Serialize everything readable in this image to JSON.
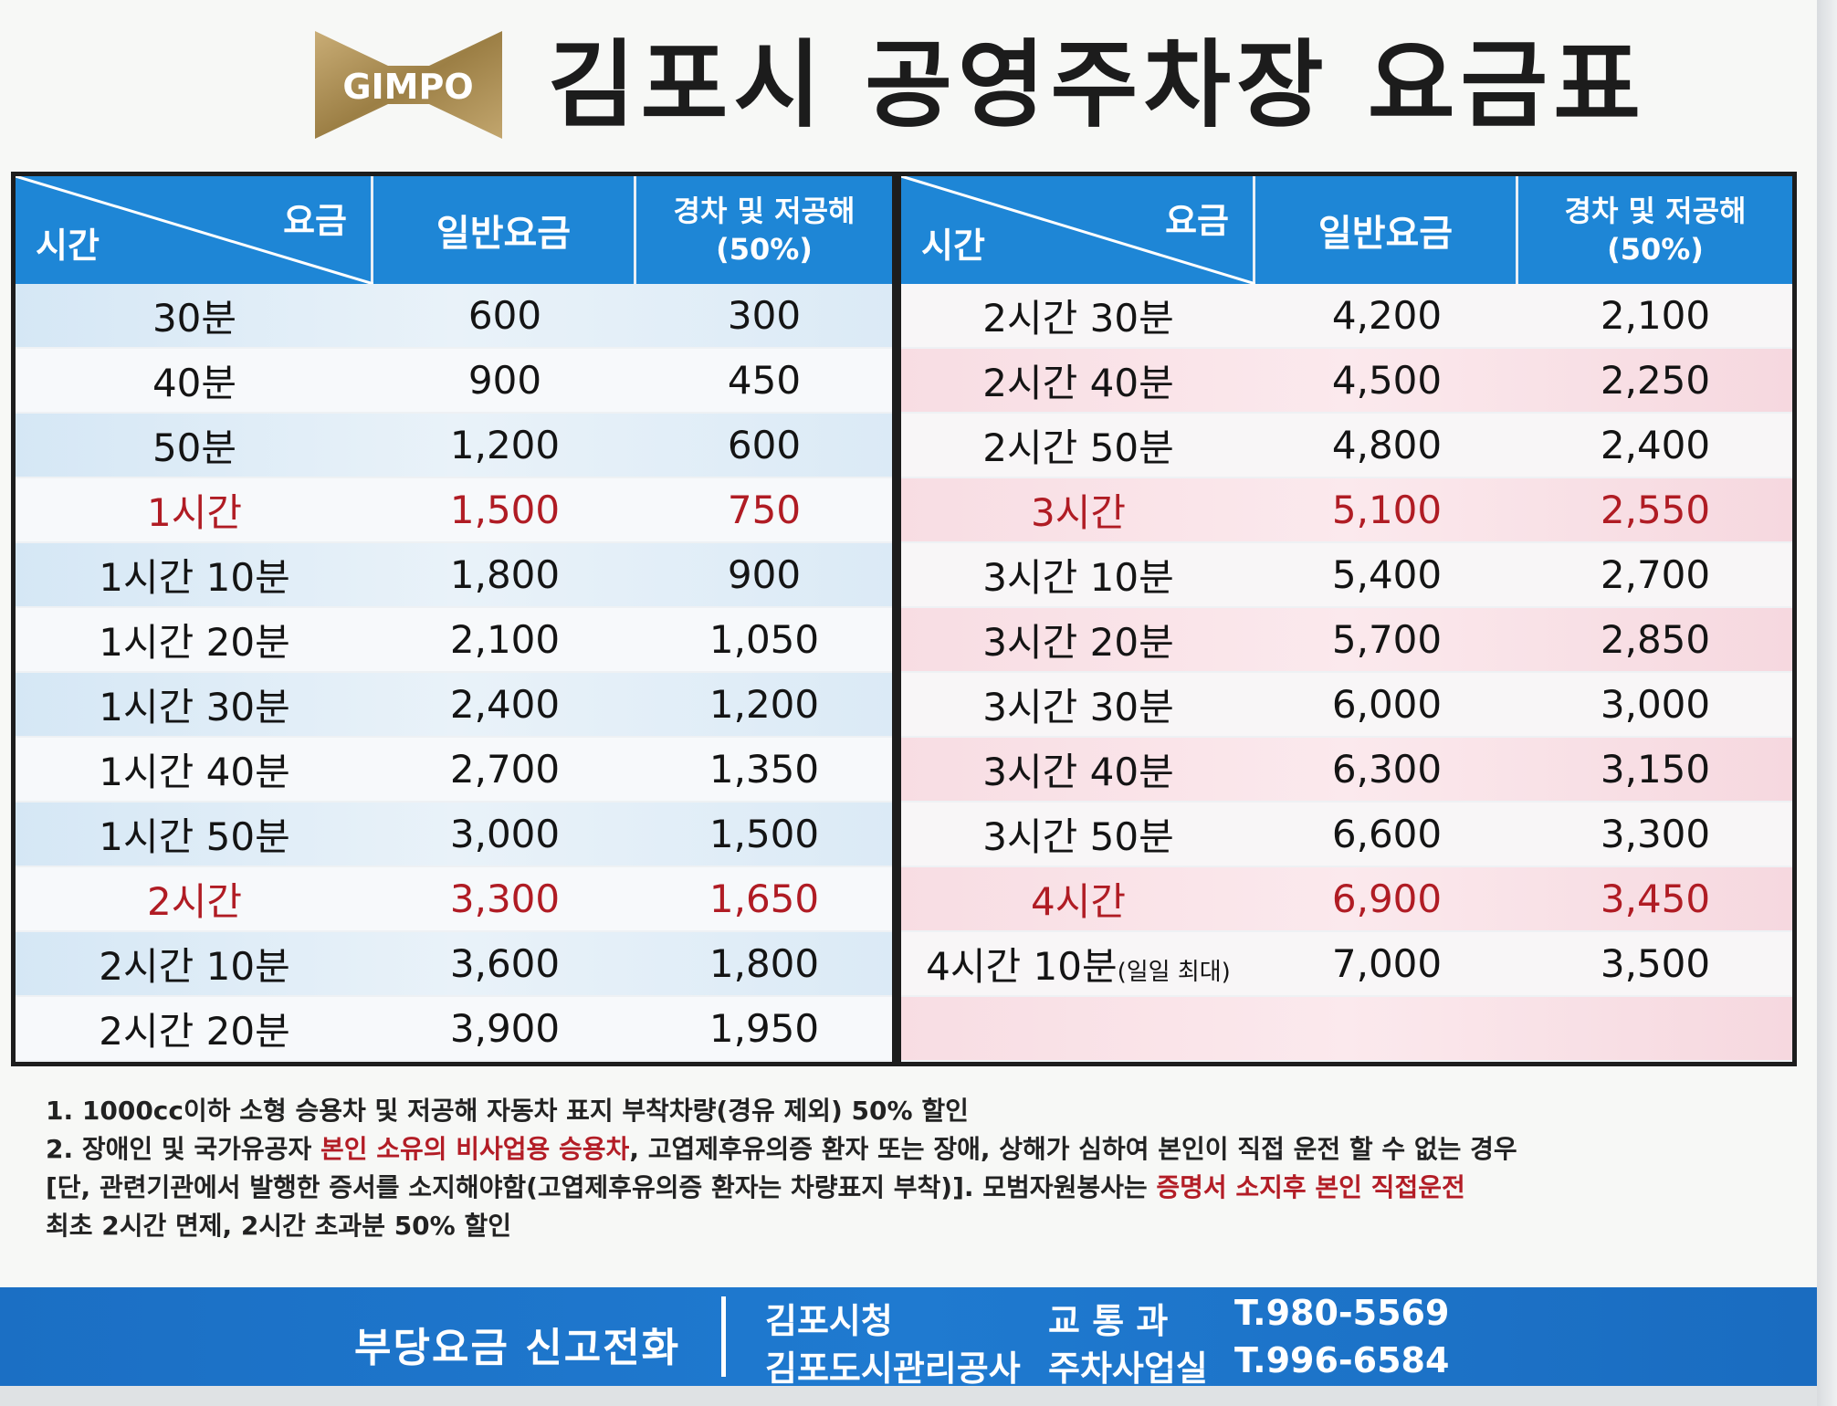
{
  "header": {
    "logo_text": "GIMPO",
    "title": "김포시 공영주차장 요금표"
  },
  "table": {
    "corner_fee": "요금",
    "corner_time": "시간",
    "col_normal": "일반요금",
    "col_discount_line1": "경차 및 저공해",
    "col_discount_line2": "(50%)",
    "left_rows": [
      {
        "time": "30분",
        "normal": "600",
        "discount": "300",
        "highlight": false
      },
      {
        "time": "40분",
        "normal": "900",
        "discount": "450",
        "highlight": false
      },
      {
        "time": "50분",
        "normal": "1,200",
        "discount": "600",
        "highlight": false
      },
      {
        "time": "1시간",
        "normal": "1,500",
        "discount": "750",
        "highlight": true
      },
      {
        "time": "1시간 10분",
        "normal": "1,800",
        "discount": "900",
        "highlight": false
      },
      {
        "time": "1시간 20분",
        "normal": "2,100",
        "discount": "1,050",
        "highlight": false
      },
      {
        "time": "1시간 30분",
        "normal": "2,400",
        "discount": "1,200",
        "highlight": false
      },
      {
        "time": "1시간 40분",
        "normal": "2,700",
        "discount": "1,350",
        "highlight": false
      },
      {
        "time": "1시간 50분",
        "normal": "3,000",
        "discount": "1,500",
        "highlight": false
      },
      {
        "time": "2시간",
        "normal": "3,300",
        "discount": "1,650",
        "highlight": true
      },
      {
        "time": "2시간 10분",
        "normal": "3,600",
        "discount": "1,800",
        "highlight": false
      },
      {
        "time": "2시간 20분",
        "normal": "3,900",
        "discount": "1,950",
        "highlight": false
      }
    ],
    "right_rows": [
      {
        "time": "2시간 30분",
        "normal": "4,200",
        "discount": "2,100",
        "highlight": false
      },
      {
        "time": "2시간 40분",
        "normal": "4,500",
        "discount": "2,250",
        "highlight": false
      },
      {
        "time": "2시간 50분",
        "normal": "4,800",
        "discount": "2,400",
        "highlight": false
      },
      {
        "time": "3시간",
        "normal": "5,100",
        "discount": "2,550",
        "highlight": true
      },
      {
        "time": "3시간 10분",
        "normal": "5,400",
        "discount": "2,700",
        "highlight": false
      },
      {
        "time": "3시간 20분",
        "normal": "5,700",
        "discount": "2,850",
        "highlight": false
      },
      {
        "time": "3시간 30분",
        "normal": "6,000",
        "discount": "3,000",
        "highlight": false
      },
      {
        "time": "3시간 40분",
        "normal": "6,300",
        "discount": "3,150",
        "highlight": false
      },
      {
        "time": "3시간 50분",
        "normal": "6,600",
        "discount": "3,300",
        "highlight": false
      },
      {
        "time": "4시간",
        "normal": "6,900",
        "discount": "3,450",
        "highlight": true
      },
      {
        "time": "4시간 10분",
        "time_note": "(일일 최대)",
        "normal": "7,000",
        "discount": "3,500",
        "highlight": false
      },
      {
        "time": "",
        "normal": "",
        "discount": "",
        "highlight": false
      }
    ]
  },
  "notes": {
    "n1": "1. 1000cc이하 소형 승용차 및 저공해 자동차 표지 부착차량(경유 제외) 50% 할인",
    "n2_a": "2. 장애인 및 국가유공자 ",
    "n2_red1": "본인 소유의 비사업용 승용차",
    "n2_b": ", 고엽제후유의증 환자 또는 장애, 상해가 심하여 본인이 직접 운전 할 수 없는 경우",
    "n3_a": "[단, 관련기관에서 발행한 증서를 소지해야함(고엽제후유의증 환자는 차량표지 부착)]. 모범자원봉사는 ",
    "n3_red": "증명서 소지후 본인 직접운전",
    "n4": "최초 2시간 면제, 2시간 초과분 50% 할인"
  },
  "footer": {
    "label": "부당요금 신고전화",
    "org1": "김포시청",
    "dept1": "교 통 과",
    "tel1": "T.980-5569",
    "org2": "김포도시관리공사",
    "dept2": "주차사업실",
    "tel2": "T.996-6584"
  },
  "colors": {
    "header_blue": "#1e86d6",
    "highlight_red": "#b01c24",
    "logo_gold": "#a08650"
  }
}
